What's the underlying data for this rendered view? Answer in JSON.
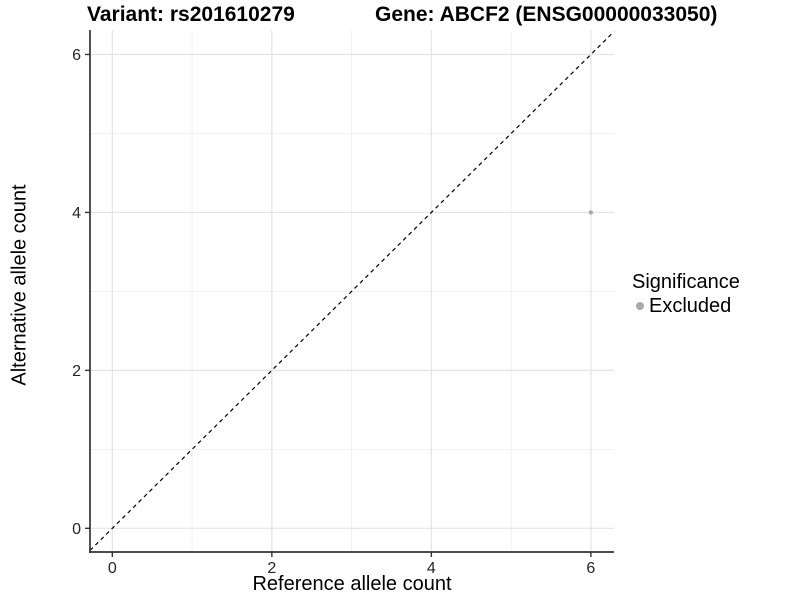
{
  "chart_data": {
    "type": "scatter",
    "title_left": "Variant: rs201610279",
    "title_right": "Gene: ABCF2 (ENSG00000033050)",
    "xlabel": "Reference allele count",
    "ylabel": "Alternative allele count",
    "xlim": [
      -0.28,
      6.29
    ],
    "ylim": [
      -0.3,
      6.31
    ],
    "x_major_ticks": [
      0,
      2,
      4,
      6
    ],
    "y_major_ticks": [
      0,
      2,
      4,
      6
    ],
    "x_minor_gridlines": [
      1,
      3,
      5
    ],
    "y_minor_gridlines": [
      1,
      3,
      5
    ],
    "grid": "on",
    "identity_line": {
      "equation": "y = x",
      "style": "dashed",
      "color": "#000000"
    },
    "series": [
      {
        "name": "Excluded",
        "color": "#aaaaaa",
        "points": [
          [
            6,
            4
          ]
        ]
      }
    ],
    "legend": {
      "title": "Significance",
      "position": "right",
      "entries": [
        {
          "label": "Excluded",
          "color": "#aaaaaa",
          "marker": "circle"
        }
      ]
    }
  },
  "colors": {
    "background": "#ffffff",
    "grid_major": "#e4e4e4",
    "grid_minor": "#f1f1f1",
    "axis_line": "#333333",
    "tick_label": "#262626",
    "point": "#aaaaaa"
  }
}
